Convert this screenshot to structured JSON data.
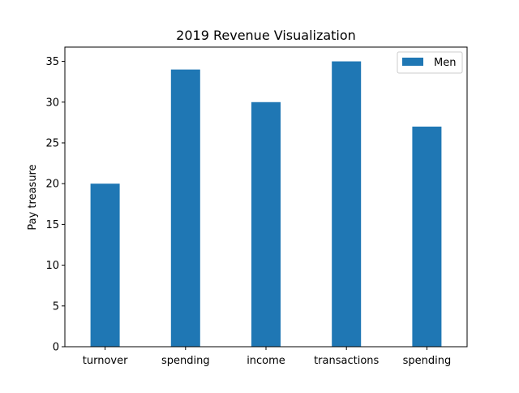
{
  "chart_data": {
    "type": "bar",
    "title": "2019 Revenue Visualization",
    "xlabel": "",
    "ylabel": "Pay treasure",
    "categories": [
      "turnover",
      "spending",
      "income",
      "transactions",
      "spending"
    ],
    "series": [
      {
        "name": "Men",
        "values": [
          20,
          34,
          30,
          35,
          27
        ],
        "color": "#1f77b4"
      }
    ],
    "ylim": [
      0,
      36.75
    ],
    "yticks": [
      0,
      5,
      10,
      15,
      20,
      25,
      30,
      35
    ],
    "grid": false,
    "legend": {
      "position": "top-right"
    }
  }
}
